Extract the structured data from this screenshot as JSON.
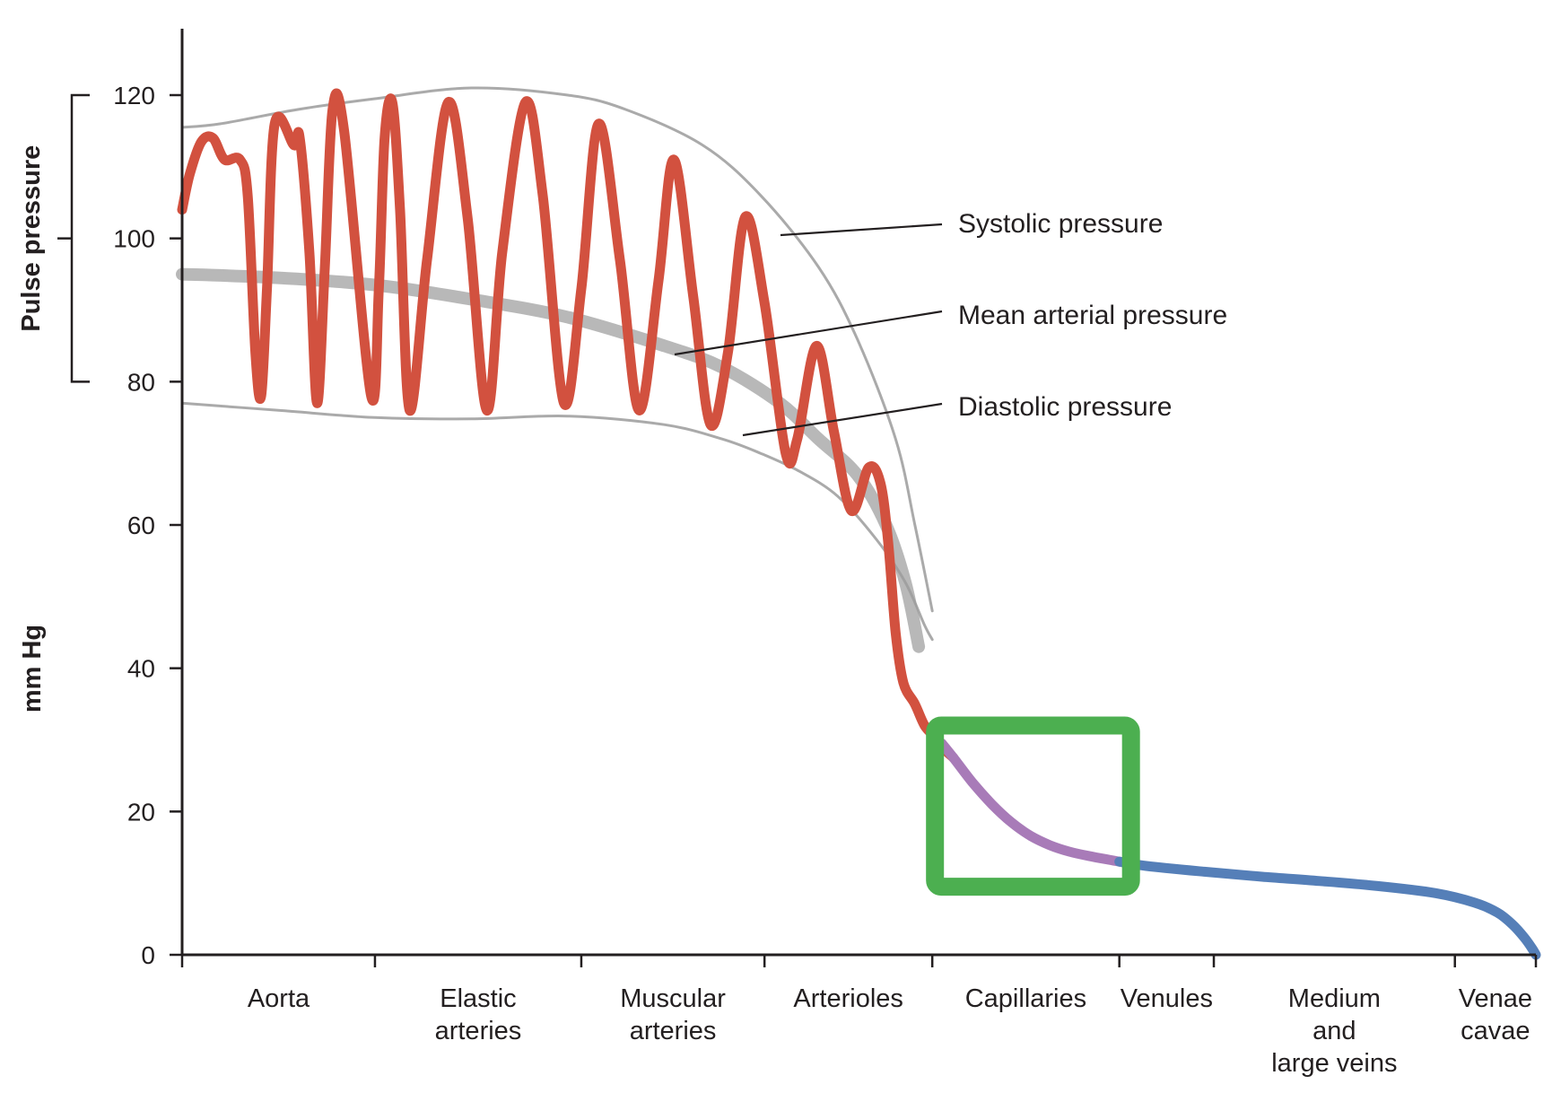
{
  "chart_data": {
    "type": "line",
    "title": "",
    "ylabel": "mm Hg",
    "bracket_label": "Pulse pressure",
    "ylim": [
      0,
      130
    ],
    "yticks": [
      0,
      20,
      40,
      60,
      80,
      100,
      120
    ],
    "x_segments": [
      {
        "label": "Aorta",
        "start": 0,
        "end": 1
      },
      {
        "label": "Elastic arteries",
        "start": 1,
        "end": 2.07
      },
      {
        "label": "Muscular arteries",
        "start": 2.07,
        "end": 3.02
      },
      {
        "label": "Arterioles",
        "start": 3.02,
        "end": 3.89
      },
      {
        "label": "Capillaries",
        "start": 3.89,
        "end": 4.86
      },
      {
        "label": "Venules",
        "start": 4.86,
        "end": 5.35
      },
      {
        "label": "Medium and large veins",
        "start": 5.35,
        "end": 6.6
      },
      {
        "label": "Venae cavae",
        "start": 6.6,
        "end": 7.02
      }
    ],
    "annotations": [
      "Systolic pressure",
      "Mean arterial pressure",
      "Diastolic pressure"
    ],
    "pulse_pressure_range": [
      80,
      120
    ],
    "series": [
      {
        "role": "systolic-envelope",
        "color": "#aaaaaa",
        "x": [
          0,
          0.2,
          0.6,
          1.0,
          1.5,
          2.0,
          2.3,
          2.7,
          3.0,
          3.3,
          3.5,
          3.7,
          3.8,
          3.89
        ],
        "y": [
          115.5,
          116,
          118,
          119.5,
          121,
          120,
          118,
          113,
          106,
          96,
          86,
          72,
          60,
          48
        ]
      },
      {
        "role": "mean-arterial",
        "color": "#9d9d9d",
        "x": [
          0,
          0.5,
          1.0,
          1.5,
          2.0,
          2.5,
          2.8,
          3.1,
          3.3,
          3.5,
          3.65,
          3.75,
          3.82
        ],
        "y": [
          95,
          94.5,
          93.5,
          91.5,
          89,
          85,
          82,
          77,
          72,
          67,
          60,
          52,
          43
        ]
      },
      {
        "role": "diastolic-envelope",
        "color": "#aaaaaa",
        "x": [
          0,
          0.5,
          1.0,
          1.5,
          2.0,
          2.5,
          2.8,
          3.0,
          3.2,
          3.4,
          3.6,
          3.75,
          3.85,
          3.89
        ],
        "y": [
          77,
          76,
          75,
          74.8,
          75.2,
          74,
          72,
          70,
          67.5,
          64,
          58,
          52,
          46,
          44
        ]
      },
      {
        "role": "arterial-pressure",
        "color": "#d2513f",
        "x": [
          0,
          0.04,
          0.1,
          0.16,
          0.22,
          0.3,
          0.34,
          0.38,
          0.41,
          0.44,
          0.48,
          0.58,
          0.61,
          0.66,
          0.7,
          0.74,
          0.78,
          0.84,
          0.98,
          1.02,
          1.05,
          1.09,
          1.13,
          1.18,
          1.27,
          1.38,
          1.48,
          1.58,
          1.66,
          1.78,
          1.87,
          1.98,
          2.07,
          2.16,
          2.27,
          2.37,
          2.47,
          2.55,
          2.65,
          2.74,
          2.83,
          2.92,
          3.02,
          3.13,
          3.19,
          3.29,
          3.38,
          3.47,
          3.56,
          3.62,
          3.66,
          3.7,
          3.74,
          3.8,
          3.85,
          3.9,
          3.94,
          4.0
        ],
        "y": [
          104,
          109,
          113.5,
          114,
          111,
          111,
          106,
          84,
          78,
          93,
          116,
          113,
          114,
          98,
          77,
          96,
          118,
          115,
          78,
          93,
          114,
          119,
          104,
          76,
          97,
          119,
          103,
          76,
          98,
          119,
          106,
          77,
          93,
          116,
          97,
          76,
          94,
          111,
          92,
          74,
          84,
          103,
          91,
          70,
          72,
          85,
          73,
          62,
          68,
          66,
          58,
          45,
          38,
          35,
          32,
          30.5,
          29,
          27.5
        ]
      },
      {
        "role": "capillary-pressure",
        "color": "#a87bb8",
        "x": [
          3.94,
          4.0,
          4.1,
          4.2,
          4.3,
          4.4,
          4.5,
          4.6,
          4.7,
          4.8,
          4.86,
          4.91
        ],
        "y": [
          29.5,
          27.5,
          24,
          21,
          18.5,
          16.6,
          15.3,
          14.4,
          13.8,
          13.3,
          13.0,
          12.8
        ]
      },
      {
        "role": "venous-pressure",
        "color": "#557fb8",
        "x": [
          4.86,
          5.0,
          5.3,
          5.6,
          5.9,
          6.2,
          6.5,
          6.7,
          6.82,
          6.9,
          6.96,
          7.0,
          7.02
        ],
        "y": [
          13.0,
          12.4,
          11.6,
          10.9,
          10.3,
          9.6,
          8.6,
          7.3,
          5.9,
          4.2,
          2.4,
          0.9,
          0
        ]
      }
    ],
    "highlight_box": {
      "color": "#4caf50",
      "x_range": [
        3.89,
        4.86
      ],
      "y_range": [
        9.5,
        32
      ]
    },
    "grid": false,
    "legend": "none"
  }
}
